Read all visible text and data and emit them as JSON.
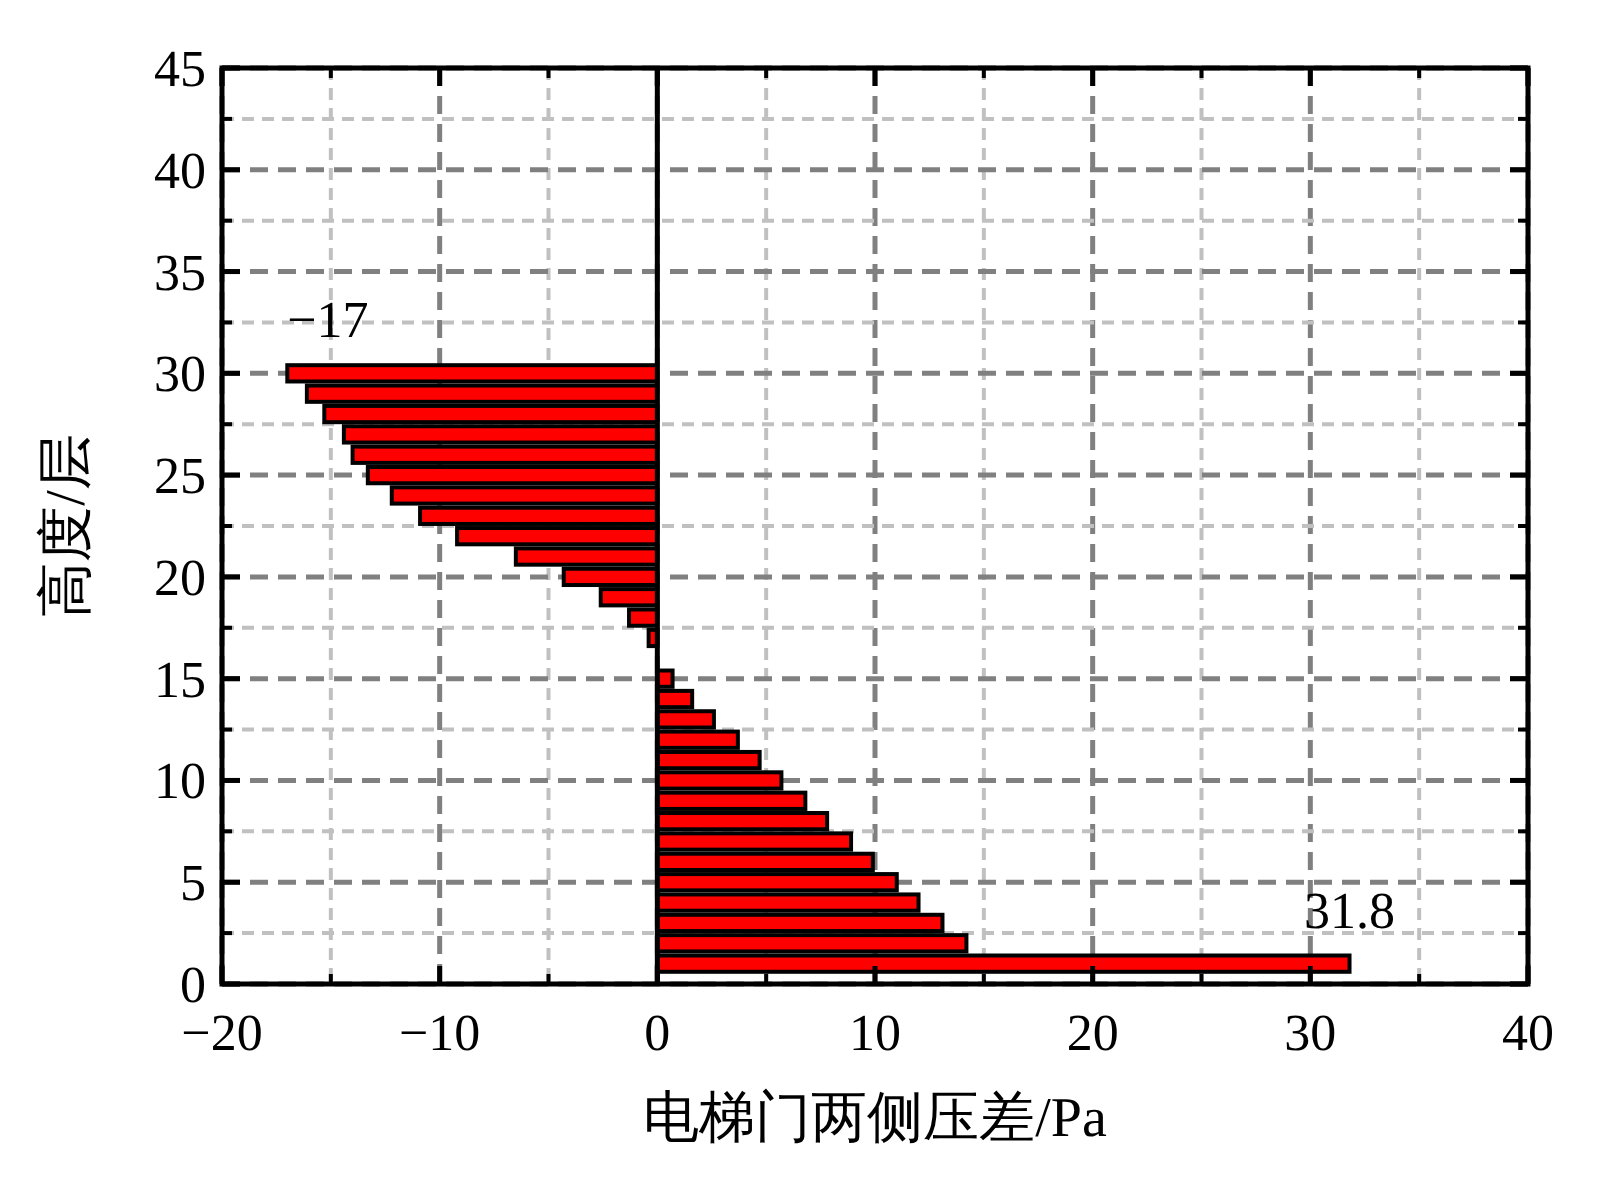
{
  "chart_data": {
    "type": "bar",
    "orientation": "horizontal",
    "xlabel": "电梯门两侧压差/Pa",
    "ylabel": "高度/层",
    "x": [
      1,
      2,
      3,
      4,
      5,
      6,
      7,
      8,
      9,
      10,
      11,
      12,
      13,
      14,
      15,
      16,
      17,
      18,
      19,
      20,
      21,
      22,
      23,
      24,
      25,
      26,
      27,
      28,
      29,
      30
    ],
    "values": [
      31.8,
      14.2,
      13.1,
      12.0,
      11.0,
      9.9,
      8.9,
      7.8,
      6.8,
      5.7,
      4.7,
      3.7,
      2.6,
      1.6,
      0.7,
      0,
      -0.4,
      -1.3,
      -2.6,
      -4.3,
      -6.5,
      -9.2,
      -10.9,
      -12.2,
      -13.3,
      -14.0,
      -14.4,
      -15.3,
      -16.1,
      -17
    ],
    "color": "#ff0000",
    "xlim": [
      -20,
      40
    ],
    "xticks": [
      {
        "value": -20,
        "label": "−20"
      },
      {
        "value": -10,
        "label": "−10"
      },
      0,
      10,
      20,
      30,
      40
    ],
    "ylim": [
      0,
      45
    ],
    "yticks": [
      0,
      5,
      10,
      15,
      20,
      25,
      30,
      35,
      40,
      45
    ],
    "grid": true,
    "ref_lines": [
      {
        "axis": "x",
        "value": 0,
        "color": "#000000"
      }
    ],
    "annotations": [
      {
        "text": "−17",
        "x": -17,
        "y": 30
      },
      {
        "text": "31.8",
        "x": 31.8,
        "y": 1
      }
    ]
  }
}
